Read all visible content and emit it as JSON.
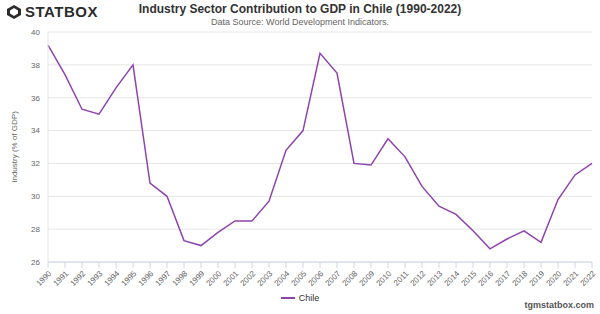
{
  "chart_data": {
    "type": "line",
    "title": "Industry Sector Contribution to GDP in Chile (1990-2022)",
    "subtitle": "Data Source: World Development Indicators.",
    "brand": "STATBOX",
    "website": "tgmstatbox.com",
    "y_label": "Industry (% of GDP)",
    "categories": [
      "1990",
      "1991",
      "1992",
      "1993",
      "1994",
      "1995",
      "1996",
      "1997",
      "1998",
      "1999",
      "2000",
      "2001",
      "2002",
      "2003",
      "2004",
      "2005",
      "2006",
      "2007",
      "2008",
      "2009",
      "2010",
      "2011",
      "2012",
      "2013",
      "2014",
      "2015",
      "2016",
      "2017",
      "2018",
      "2019",
      "2020",
      "2021",
      "2022"
    ],
    "series": [
      {
        "name": "Chile",
        "color": "#8e44ad",
        "values": [
          39.2,
          37.4,
          35.3,
          35.0,
          36.6,
          38.0,
          30.8,
          30.0,
          27.3,
          27.0,
          27.8,
          28.5,
          28.5,
          29.7,
          32.8,
          34.0,
          38.7,
          37.5,
          32.0,
          31.9,
          33.5,
          32.4,
          30.6,
          29.4,
          28.9,
          27.9,
          26.8,
          27.4,
          27.9,
          27.2,
          29.8,
          31.3,
          32.0
        ]
      }
    ],
    "ylim": [
      26,
      40
    ],
    "yticks": [
      26,
      28,
      30,
      32,
      34,
      36,
      38,
      40
    ],
    "grid": true
  }
}
